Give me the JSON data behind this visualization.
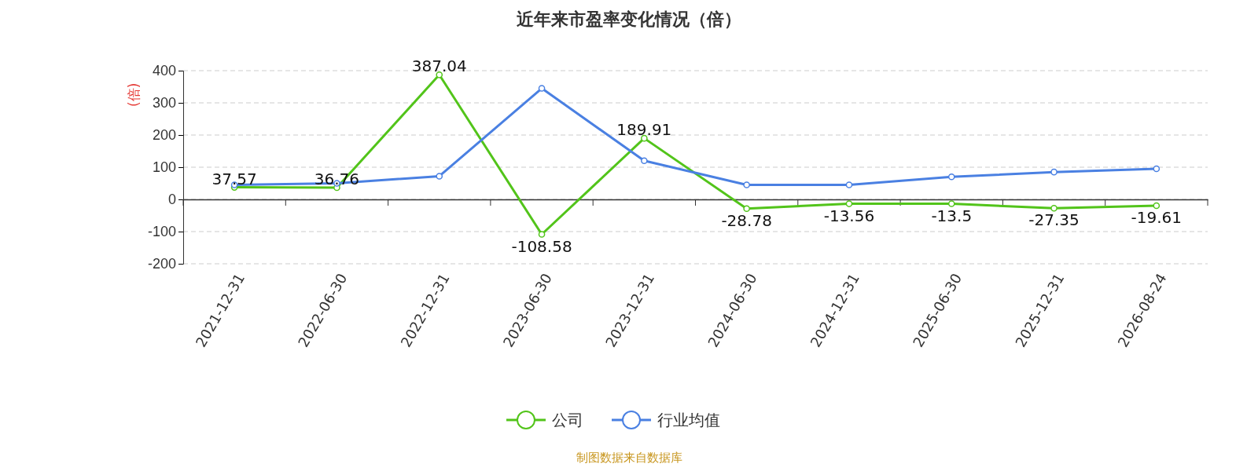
{
  "chart_data": {
    "type": "line",
    "title": "近年来市盈率变化情况（倍）",
    "ylabel": "(倍)",
    "categories": [
      "2021-12-31",
      "2022-06-30",
      "2022-12-31",
      "2023-06-30",
      "2023-12-31",
      "2024-06-30",
      "2024-12-31",
      "2025-06-30",
      "2025-12-31",
      "2026-08-24"
    ],
    "series": [
      {
        "name": "公司",
        "color": "#52c41a",
        "values": [
          37.57,
          36.76,
          387.04,
          -108.58,
          189.91,
          -28.78,
          -13.56,
          -13.5,
          -27.35,
          -19.61
        ],
        "data_labels": true
      },
      {
        "name": "行业均值",
        "color": "#4a80e2",
        "values": [
          45,
          50,
          72,
          345,
          120,
          45,
          45,
          70,
          85,
          95
        ]
      }
    ],
    "ylim": [
      -200,
      400
    ],
    "yticks": [
      -200,
      -100,
      0,
      100,
      200,
      300,
      400
    ],
    "grid": "y",
    "legend": "bottom",
    "marker": "circle",
    "line_style": "solid",
    "annotations": [
      "制图数据来自数据库"
    ]
  }
}
